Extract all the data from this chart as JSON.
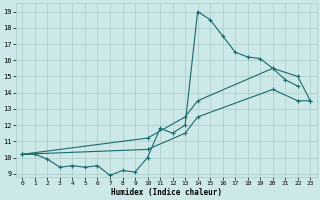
{
  "xlabel": "Humidex (Indice chaleur)",
  "ylabel": "",
  "xlim": [
    -0.5,
    23.5
  ],
  "ylim": [
    8.8,
    19.5
  ],
  "xticks": [
    0,
    1,
    2,
    3,
    4,
    5,
    6,
    7,
    8,
    9,
    10,
    11,
    12,
    13,
    14,
    15,
    16,
    17,
    18,
    19,
    20,
    21,
    22,
    23
  ],
  "yticks": [
    9,
    10,
    11,
    12,
    13,
    14,
    15,
    16,
    17,
    18,
    19
  ],
  "bg_color": "#cce8e8",
  "grid_color": "#aacccc",
  "line_color": "#1a6b6b",
  "line1": [
    [
      0,
      10.2
    ],
    [
      1,
      10.2
    ],
    [
      2,
      9.9
    ],
    [
      3,
      9.4
    ],
    [
      4,
      9.5
    ],
    [
      5,
      9.4
    ],
    [
      6,
      9.5
    ],
    [
      7,
      8.9
    ],
    [
      8,
      9.2
    ],
    [
      9,
      9.1
    ],
    [
      10,
      10.0
    ],
    [
      11,
      11.8
    ],
    [
      12,
      11.5
    ],
    [
      13,
      12.0
    ],
    [
      14,
      19.0
    ],
    [
      15,
      18.5
    ],
    [
      16,
      17.5
    ],
    [
      17,
      16.5
    ],
    [
      18,
      16.2
    ],
    [
      19,
      16.1
    ],
    [
      20,
      15.5
    ],
    [
      21,
      14.8
    ],
    [
      22,
      14.4
    ]
  ],
  "line2": [
    [
      0,
      10.2
    ],
    [
      10,
      11.2
    ],
    [
      13,
      12.5
    ],
    [
      14,
      13.5
    ],
    [
      20,
      15.5
    ],
    [
      22,
      15.0
    ],
    [
      23,
      13.5
    ]
  ],
  "line3": [
    [
      0,
      10.2
    ],
    [
      10,
      10.5
    ],
    [
      13,
      11.5
    ],
    [
      14,
      12.5
    ],
    [
      20,
      14.2
    ],
    [
      22,
      13.5
    ],
    [
      23,
      13.5
    ]
  ],
  "figsize": [
    3.2,
    2.0
  ],
  "dpi": 100
}
